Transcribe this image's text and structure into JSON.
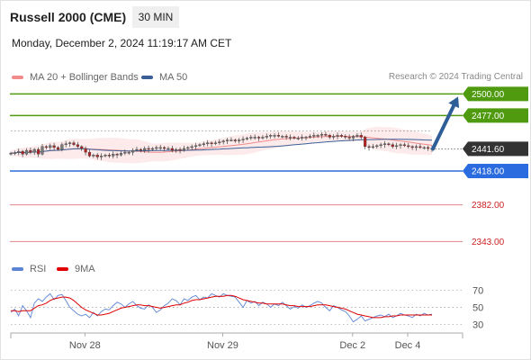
{
  "header": {
    "title": "Russell 2000 (CME)",
    "interval": "30 MIN",
    "datetime": "Monday, December 2, 2024 11:19:17 AM CET"
  },
  "legend": {
    "ma20_label": "MA 20 + Bollinger Bands",
    "ma20_color": "#f28b8b",
    "ma50_label": "MA 50",
    "ma50_color": "#3a5f97",
    "rsi_label": "RSI",
    "rsi_color": "#5b84d6",
    "ma9_label": "9MA",
    "ma9_color": "#e00000"
  },
  "credit": "Research © 2024 Trading Central",
  "chart_data": [
    {
      "type": "candlestick",
      "ylim": [
        2330,
        2508
      ],
      "current_price": {
        "value": 2441.6,
        "label": "2441.60",
        "color": "#333333"
      },
      "levels": [
        {
          "value": 2500.0,
          "label": "2500.00",
          "color": "#4f9a0e",
          "kind": "resistance",
          "flag": true
        },
        {
          "value": 2477.0,
          "label": "2477.00",
          "color": "#4f9a0e",
          "kind": "resistance",
          "flag": true
        },
        {
          "value": 2418.0,
          "label": "2418.00",
          "color": "#2b6be0",
          "kind": "pivot",
          "flag": true
        },
        {
          "value": 2382.0,
          "label": "2382.00",
          "color": "#cc1f1f",
          "kind": "support",
          "flag": false
        },
        {
          "value": 2343.0,
          "label": "2343.00",
          "color": "#cc1f1f",
          "kind": "support",
          "flag": false
        }
      ],
      "arrow": {
        "from": 2441.6,
        "to": 2500,
        "color": "#2f5d97"
      },
      "close": [
        2437,
        2437.5,
        2439,
        2436,
        2440,
        2438,
        2441,
        2436,
        2444,
        2443,
        2445,
        2443,
        2441,
        2446,
        2447,
        2448,
        2446,
        2444,
        2442,
        2438,
        2434,
        2435,
        2433,
        2434,
        2435,
        2434,
        2436,
        2435,
        2437,
        2438,
        2438,
        2440,
        2441,
        2440,
        2442,
        2441,
        2442,
        2443,
        2443,
        2442,
        2442,
        2440,
        2441,
        2440,
        2442,
        2443,
        2444,
        2445,
        2446,
        2447,
        2448,
        2447,
        2448,
        2449,
        2450,
        2451,
        2451,
        2450,
        2451,
        2452,
        2453,
        2454,
        2454,
        2453,
        2454,
        2455,
        2456,
        2456,
        2455,
        2455,
        2454,
        2454,
        2453,
        2453,
        2454,
        2454,
        2455,
        2456,
        2456,
        2457,
        2456,
        2454,
        2455,
        2456,
        2455,
        2454,
        2453,
        2455,
        2456,
        2454,
        2444,
        2443,
        2444,
        2445,
        2446,
        2447,
        2446,
        2444,
        2445,
        2446,
        2445,
        2444,
        2443,
        2444,
        2443,
        2443,
        2442,
        2441.6
      ]
    },
    {
      "type": "line",
      "name": "RSI",
      "ylim": [
        22,
        78
      ],
      "yticks": [
        70,
        50,
        30
      ],
      "xticks": [
        {
          "label": "Nov 28",
          "index": 17
        },
        {
          "label": "Nov 29",
          "index": 52
        },
        {
          "label": "Dec 2",
          "index": 85
        },
        {
          "label": "Dec 4",
          "index": 99
        }
      ],
      "rsi": [
        44,
        48,
        40,
        52,
        46,
        38,
        55,
        60,
        57,
        62,
        66,
        59,
        64,
        65,
        58,
        50,
        46,
        42,
        40,
        42,
        38,
        44,
        40,
        45,
        48,
        47,
        52,
        56,
        54,
        50,
        54,
        57,
        52,
        49,
        48,
        53,
        50,
        44,
        47,
        52,
        55,
        60,
        58,
        53,
        60,
        58,
        62,
        64,
        59,
        62,
        61,
        66,
        64,
        62,
        66,
        64,
        63,
        62,
        56,
        50,
        58,
        55,
        57,
        52,
        56,
        54,
        50,
        54,
        52,
        56,
        52,
        48,
        51,
        49,
        53,
        50,
        52,
        55,
        57,
        55,
        50,
        46,
        52,
        50,
        47,
        45,
        40,
        33,
        36,
        40,
        34,
        36,
        38,
        40,
        41,
        39,
        42,
        38,
        40,
        43,
        41,
        40,
        38,
        42,
        40,
        43,
        41,
        42
      ],
      "ma9": [
        46,
        46,
        45,
        46,
        46,
        46,
        49,
        52,
        53,
        55,
        58,
        60,
        61,
        62,
        62,
        61,
        58,
        54,
        50,
        47,
        45,
        43,
        41,
        41,
        42,
        43,
        45,
        47,
        49,
        50,
        51,
        52,
        53,
        53,
        52,
        52,
        51,
        50,
        49,
        50,
        51,
        52,
        53,
        53,
        55,
        56,
        58,
        59,
        59,
        60,
        61,
        62,
        63,
        63,
        63,
        64,
        64,
        63,
        61,
        59,
        58,
        57,
        56,
        55,
        55,
        54,
        54,
        54,
        54,
        54,
        53,
        52,
        52,
        51,
        51,
        51,
        51,
        52,
        53,
        53,
        53,
        52,
        51,
        50,
        49,
        48,
        46,
        44,
        42,
        41,
        40,
        39,
        38,
        38,
        38,
        39,
        39,
        40,
        40,
        41,
        41,
        41,
        41,
        41,
        41,
        41,
        41,
        41
      ]
    }
  ]
}
